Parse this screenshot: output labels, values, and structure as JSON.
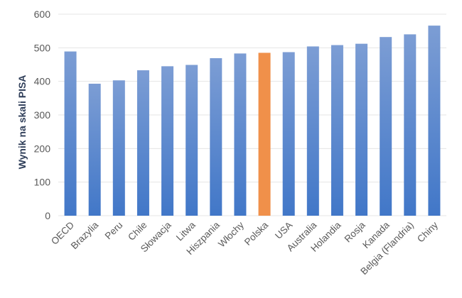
{
  "chart_data": {
    "type": "bar",
    "title": "",
    "xlabel": "",
    "ylabel": "Wynik na skali PISA",
    "ylim": [
      0,
      600
    ],
    "yticks": [
      0,
      100,
      200,
      300,
      400,
      500,
      600
    ],
    "grid": true,
    "legend": "none",
    "categories": [
      "OECD",
      "Brazylia",
      "Peru",
      "Chile",
      "Słowacja",
      "Litwa",
      "Hiszpania",
      "Włochy",
      "Polska",
      "USA",
      "Australia",
      "Holandia",
      "Rosja",
      "Kanada",
      "Belgia (Flandria)",
      "Chiny"
    ],
    "values": [
      489,
      393,
      403,
      433,
      445,
      449,
      469,
      483,
      485,
      487,
      504,
      508,
      512,
      532,
      540,
      566
    ],
    "highlight_category": "Polska",
    "colors": {
      "bar_top": "#7C9DD4",
      "bar_bottom": "#4177C8",
      "highlight": "#F0904A",
      "grid": "#E4E4E4",
      "tick_text": "#595959",
      "ylabel_text": "#2E3D58"
    }
  }
}
